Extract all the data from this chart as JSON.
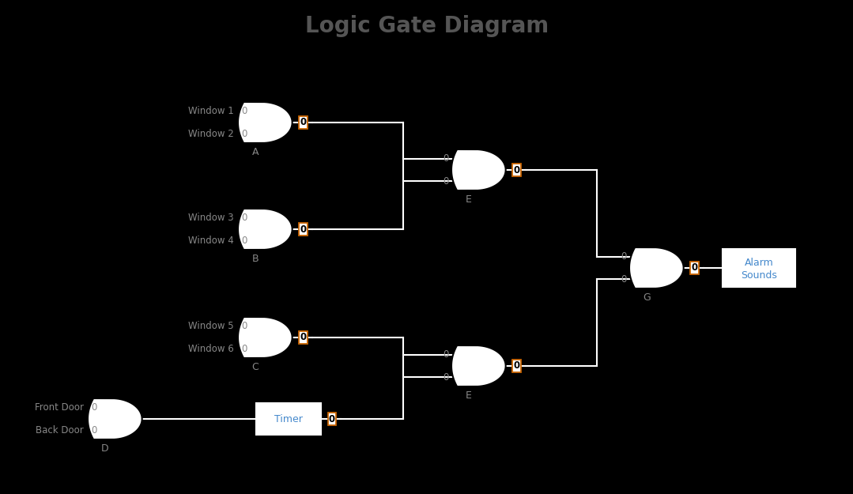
{
  "title": "Logic Gate Diagram",
  "title_fontsize": 20,
  "title_fontweight": "bold",
  "title_color": "#555555",
  "background_color": "#000000",
  "gate_fill": "#ffffff",
  "gate_edge": "#000000",
  "line_color": "#ffffff",
  "label_color": "#888888",
  "value_color": "#000000",
  "value_bg": "#ffffff",
  "value_border": "#cc6600",
  "alarm_text_color": "#4488cc",
  "figsize": [
    10.79,
    6.25
  ],
  "dpi": 100,
  "xlim": [
    0,
    10.79
  ],
  "ylim": [
    0,
    6.25
  ]
}
